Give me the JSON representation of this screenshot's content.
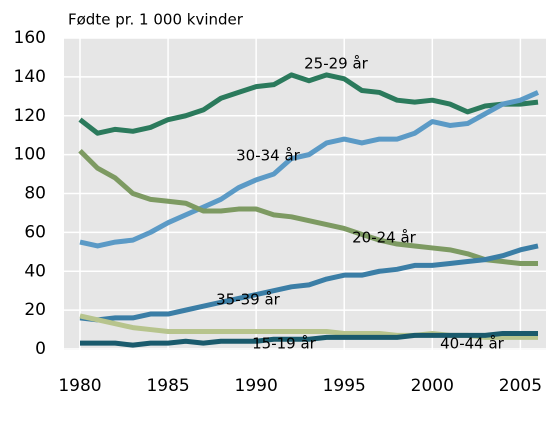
{
  "chart_data": {
    "type": "line",
    "y_label": "Fødte pr. 1 000 kvinder",
    "x": [
      1980,
      1981,
      1982,
      1983,
      1984,
      1985,
      1986,
      1987,
      1988,
      1989,
      1990,
      1991,
      1992,
      1993,
      1994,
      1995,
      1996,
      1997,
      1998,
      1999,
      2000,
      2001,
      2002,
      2003,
      2004,
      2005,
      2006
    ],
    "xlim": [
      1980,
      2006
    ],
    "xticks": [
      1980,
      1985,
      1990,
      1995,
      2000,
      2005
    ],
    "ylim": [
      0,
      160
    ],
    "yticks": [
      0,
      20,
      40,
      60,
      80,
      100,
      120,
      140,
      160
    ],
    "grid": true,
    "series": [
      {
        "name": "25-29 år",
        "color": "#2b7a5c",
        "values": [
          118,
          111,
          113,
          112,
          114,
          118,
          120,
          123,
          129,
          132,
          135,
          136,
          141,
          138,
          141,
          139,
          133,
          132,
          128,
          127,
          128,
          126,
          122,
          125,
          126,
          126,
          127
        ]
      },
      {
        "name": "30-34 år",
        "color": "#5b9ac6",
        "values": [
          55,
          53,
          55,
          56,
          60,
          65,
          69,
          73,
          77,
          83,
          87,
          90,
          98,
          100,
          106,
          108,
          106,
          108,
          108,
          111,
          117,
          115,
          116,
          121,
          126,
          128,
          132
        ]
      },
      {
        "name": "20-24 år",
        "color": "#7d9a62",
        "values": [
          102,
          93,
          88,
          80,
          77,
          76,
          75,
          71,
          71,
          72,
          72,
          69,
          68,
          66,
          64,
          62,
          59,
          56,
          54,
          53,
          52,
          51,
          49,
          46,
          45,
          44,
          44
        ]
      },
      {
        "name": "35-39 år",
        "color": "#3b7ea6",
        "values": [
          16,
          15,
          16,
          16,
          18,
          18,
          20,
          22,
          24,
          26,
          28,
          30,
          32,
          33,
          36,
          38,
          38,
          40,
          41,
          43,
          43,
          44,
          45,
          46,
          48,
          51,
          53
        ]
      },
      {
        "name": "15-19 år",
        "color": "#b7c48d",
        "values": [
          17,
          15,
          13,
          11,
          10,
          9,
          9,
          9,
          9,
          9,
          9,
          9,
          9,
          9,
          9,
          8,
          8,
          8,
          7,
          7,
          8,
          7,
          7,
          6,
          6,
          6,
          6
        ]
      },
      {
        "name": "40-44 år",
        "color": "#1a5a6c",
        "values": [
          3,
          3,
          3,
          2,
          3,
          3,
          4,
          3,
          4,
          4,
          4,
          5,
          5,
          5,
          6,
          6,
          6,
          6,
          6,
          7,
          7,
          7,
          7,
          7,
          8,
          8,
          8
        ]
      }
    ]
  }
}
